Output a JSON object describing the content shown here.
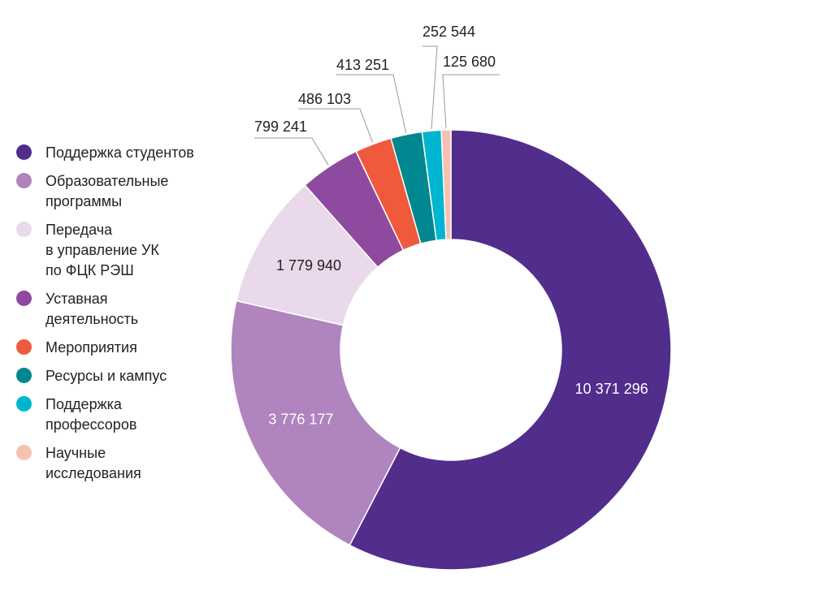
{
  "chart_data": {
    "type": "pie",
    "variant": "donut",
    "legend_position": "left",
    "categories": [
      "Поддержка студентов",
      "Образовательные\nпрограммы",
      "Передача\nв управление УК\nпо ФЦК РЭШ",
      "Уставная\nдеятельность",
      "Мероприятия",
      "Ресурсы и кампус",
      "Поддержка\nпрофессоров",
      "Научные\nисследования"
    ],
    "values": [
      10371296,
      3776177,
      1779940,
      799241,
      486103,
      413251,
      252544,
      125680
    ],
    "value_labels": [
      "10 371 296",
      "3 776 177",
      "1 779 940",
      "799 241",
      "486 103",
      "413 251",
      "252 544",
      "125 680"
    ],
    "colors": [
      "#512d8c",
      "#b084be",
      "#ead9ea",
      "#8e4a9e",
      "#f05a3c",
      "#00878f",
      "#00b5cf",
      "#f7c0b0"
    ]
  }
}
